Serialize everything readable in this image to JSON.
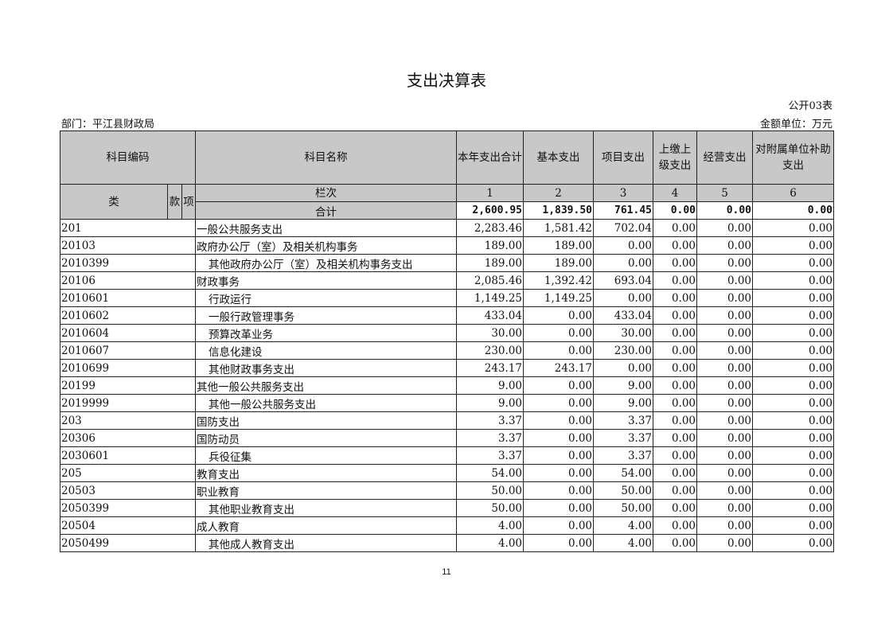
{
  "title": "支出决算表",
  "table_code": "公开03表",
  "department": "部门：平江县财政局",
  "unit": "金额单位：万元",
  "headers": {
    "code": "科目编码",
    "name": "科目名称",
    "c1": "本年支出合计",
    "c2": "基本支出",
    "c3": "项目支出",
    "c4": "上缴上级支出",
    "c5": "经营支出",
    "c6": "对附属单位补助支出",
    "lei": "类",
    "kuan": "款",
    "xiang": "项",
    "lanci": "栏次",
    "n1": "1",
    "n2": "2",
    "n3": "3",
    "n4": "4",
    "n5": "5",
    "n6": "6",
    "total_label": "合计"
  },
  "total": [
    "2,600.95",
    "1,839.50",
    "761.45",
    "0.00",
    "0.00",
    "0.00"
  ],
  "rows": [
    {
      "code": "201",
      "name": "一般公共服务支出",
      "indent": false,
      "v": [
        "2,283.46",
        "1,581.42",
        "702.04",
        "0.00",
        "0.00",
        "0.00"
      ]
    },
    {
      "code": "20103",
      "name": "政府办公厅（室）及相关机构事务",
      "indent": false,
      "v": [
        "189.00",
        "189.00",
        "0.00",
        "0.00",
        "0.00",
        "0.00"
      ]
    },
    {
      "code": "2010399",
      "name": "其他政府办公厅（室）及相关机构事务支出",
      "indent": true,
      "v": [
        "189.00",
        "189.00",
        "0.00",
        "0.00",
        "0.00",
        "0.00"
      ]
    },
    {
      "code": "20106",
      "name": "财政事务",
      "indent": false,
      "v": [
        "2,085.46",
        "1,392.42",
        "693.04",
        "0.00",
        "0.00",
        "0.00"
      ]
    },
    {
      "code": "2010601",
      "name": "行政运行",
      "indent": true,
      "v": [
        "1,149.25",
        "1,149.25",
        "0.00",
        "0.00",
        "0.00",
        "0.00"
      ]
    },
    {
      "code": "2010602",
      "name": "一般行政管理事务",
      "indent": true,
      "v": [
        "433.04",
        "0.00",
        "433.04",
        "0.00",
        "0.00",
        "0.00"
      ]
    },
    {
      "code": "2010604",
      "name": "预算改革业务",
      "indent": true,
      "v": [
        "30.00",
        "0.00",
        "30.00",
        "0.00",
        "0.00",
        "0.00"
      ]
    },
    {
      "code": "2010607",
      "name": "信息化建设",
      "indent": true,
      "v": [
        "230.00",
        "0.00",
        "230.00",
        "0.00",
        "0.00",
        "0.00"
      ]
    },
    {
      "code": "2010699",
      "name": "其他财政事务支出",
      "indent": true,
      "v": [
        "243.17",
        "243.17",
        "0.00",
        "0.00",
        "0.00",
        "0.00"
      ]
    },
    {
      "code": "20199",
      "name": "其他一般公共服务支出",
      "indent": false,
      "v": [
        "9.00",
        "0.00",
        "9.00",
        "0.00",
        "0.00",
        "0.00"
      ]
    },
    {
      "code": "2019999",
      "name": "其他一般公共服务支出",
      "indent": true,
      "v": [
        "9.00",
        "0.00",
        "9.00",
        "0.00",
        "0.00",
        "0.00"
      ]
    },
    {
      "code": "203",
      "name": "国防支出",
      "indent": false,
      "v": [
        "3.37",
        "0.00",
        "3.37",
        "0.00",
        "0.00",
        "0.00"
      ]
    },
    {
      "code": "20306",
      "name": "国防动员",
      "indent": false,
      "v": [
        "3.37",
        "0.00",
        "3.37",
        "0.00",
        "0.00",
        "0.00"
      ]
    },
    {
      "code": "2030601",
      "name": "兵役征集",
      "indent": true,
      "v": [
        "3.37",
        "0.00",
        "3.37",
        "0.00",
        "0.00",
        "0.00"
      ]
    },
    {
      "code": "205",
      "name": "教育支出",
      "indent": false,
      "v": [
        "54.00",
        "0.00",
        "54.00",
        "0.00",
        "0.00",
        "0.00"
      ]
    },
    {
      "code": "20503",
      "name": "职业教育",
      "indent": false,
      "v": [
        "50.00",
        "0.00",
        "50.00",
        "0.00",
        "0.00",
        "0.00"
      ]
    },
    {
      "code": "2050399",
      "name": "其他职业教育支出",
      "indent": true,
      "v": [
        "50.00",
        "0.00",
        "50.00",
        "0.00",
        "0.00",
        "0.00"
      ]
    },
    {
      "code": "20504",
      "name": "成人教育",
      "indent": false,
      "v": [
        "4.00",
        "0.00",
        "4.00",
        "0.00",
        "0.00",
        "0.00"
      ]
    },
    {
      "code": "2050499",
      "name": "其他成人教育支出",
      "indent": true,
      "v": [
        "4.00",
        "0.00",
        "4.00",
        "0.00",
        "0.00",
        "0.00"
      ]
    }
  ],
  "page_number": "11"
}
